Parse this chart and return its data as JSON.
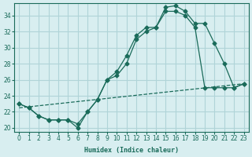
{
  "xlabel": "Humidex (Indice chaleur)",
  "bg_color": "#d8eef0",
  "grid_color": "#b0d4d8",
  "line_color": "#1a6b5a",
  "xlim": [
    -0.5,
    23.5
  ],
  "ylim": [
    19.5,
    35.5
  ],
  "yticks": [
    20,
    22,
    24,
    26,
    28,
    30,
    32,
    34
  ],
  "xticks": [
    0,
    1,
    2,
    3,
    4,
    5,
    6,
    7,
    8,
    9,
    10,
    11,
    12,
    13,
    14,
    15,
    16,
    17,
    18,
    19,
    20,
    21,
    22,
    23
  ],
  "line1_x": [
    0,
    1,
    2,
    3,
    4,
    5,
    6,
    7,
    8,
    9,
    10,
    11,
    12,
    13,
    14,
    15,
    16,
    17,
    18,
    19,
    20,
    21,
    22,
    23
  ],
  "line1_y": [
    23.0,
    22.5,
    21.5,
    21.0,
    21.0,
    21.0,
    20.0,
    22.0,
    23.5,
    26.0,
    27.0,
    29.0,
    31.5,
    32.5,
    32.5,
    35.0,
    35.2,
    34.5,
    33.0,
    33.0,
    30.5,
    28.0,
    25.0,
    25.5
  ],
  "line2_x": [
    0,
    1,
    2,
    3,
    4,
    5,
    6,
    7,
    8,
    9,
    10,
    11,
    12,
    13,
    14,
    15,
    16,
    17,
    18,
    19,
    20,
    21,
    22,
    23
  ],
  "line2_y": [
    23.0,
    22.5,
    21.5,
    21.0,
    21.0,
    21.0,
    20.5,
    22.0,
    23.5,
    26.0,
    26.5,
    28.0,
    31.0,
    32.0,
    32.5,
    34.5,
    34.5,
    34.0,
    32.5,
    25.0,
    25.0,
    25.0,
    25.0,
    25.5
  ],
  "line3_x": [
    0,
    23
  ],
  "line3_y": [
    22.5,
    25.5
  ]
}
